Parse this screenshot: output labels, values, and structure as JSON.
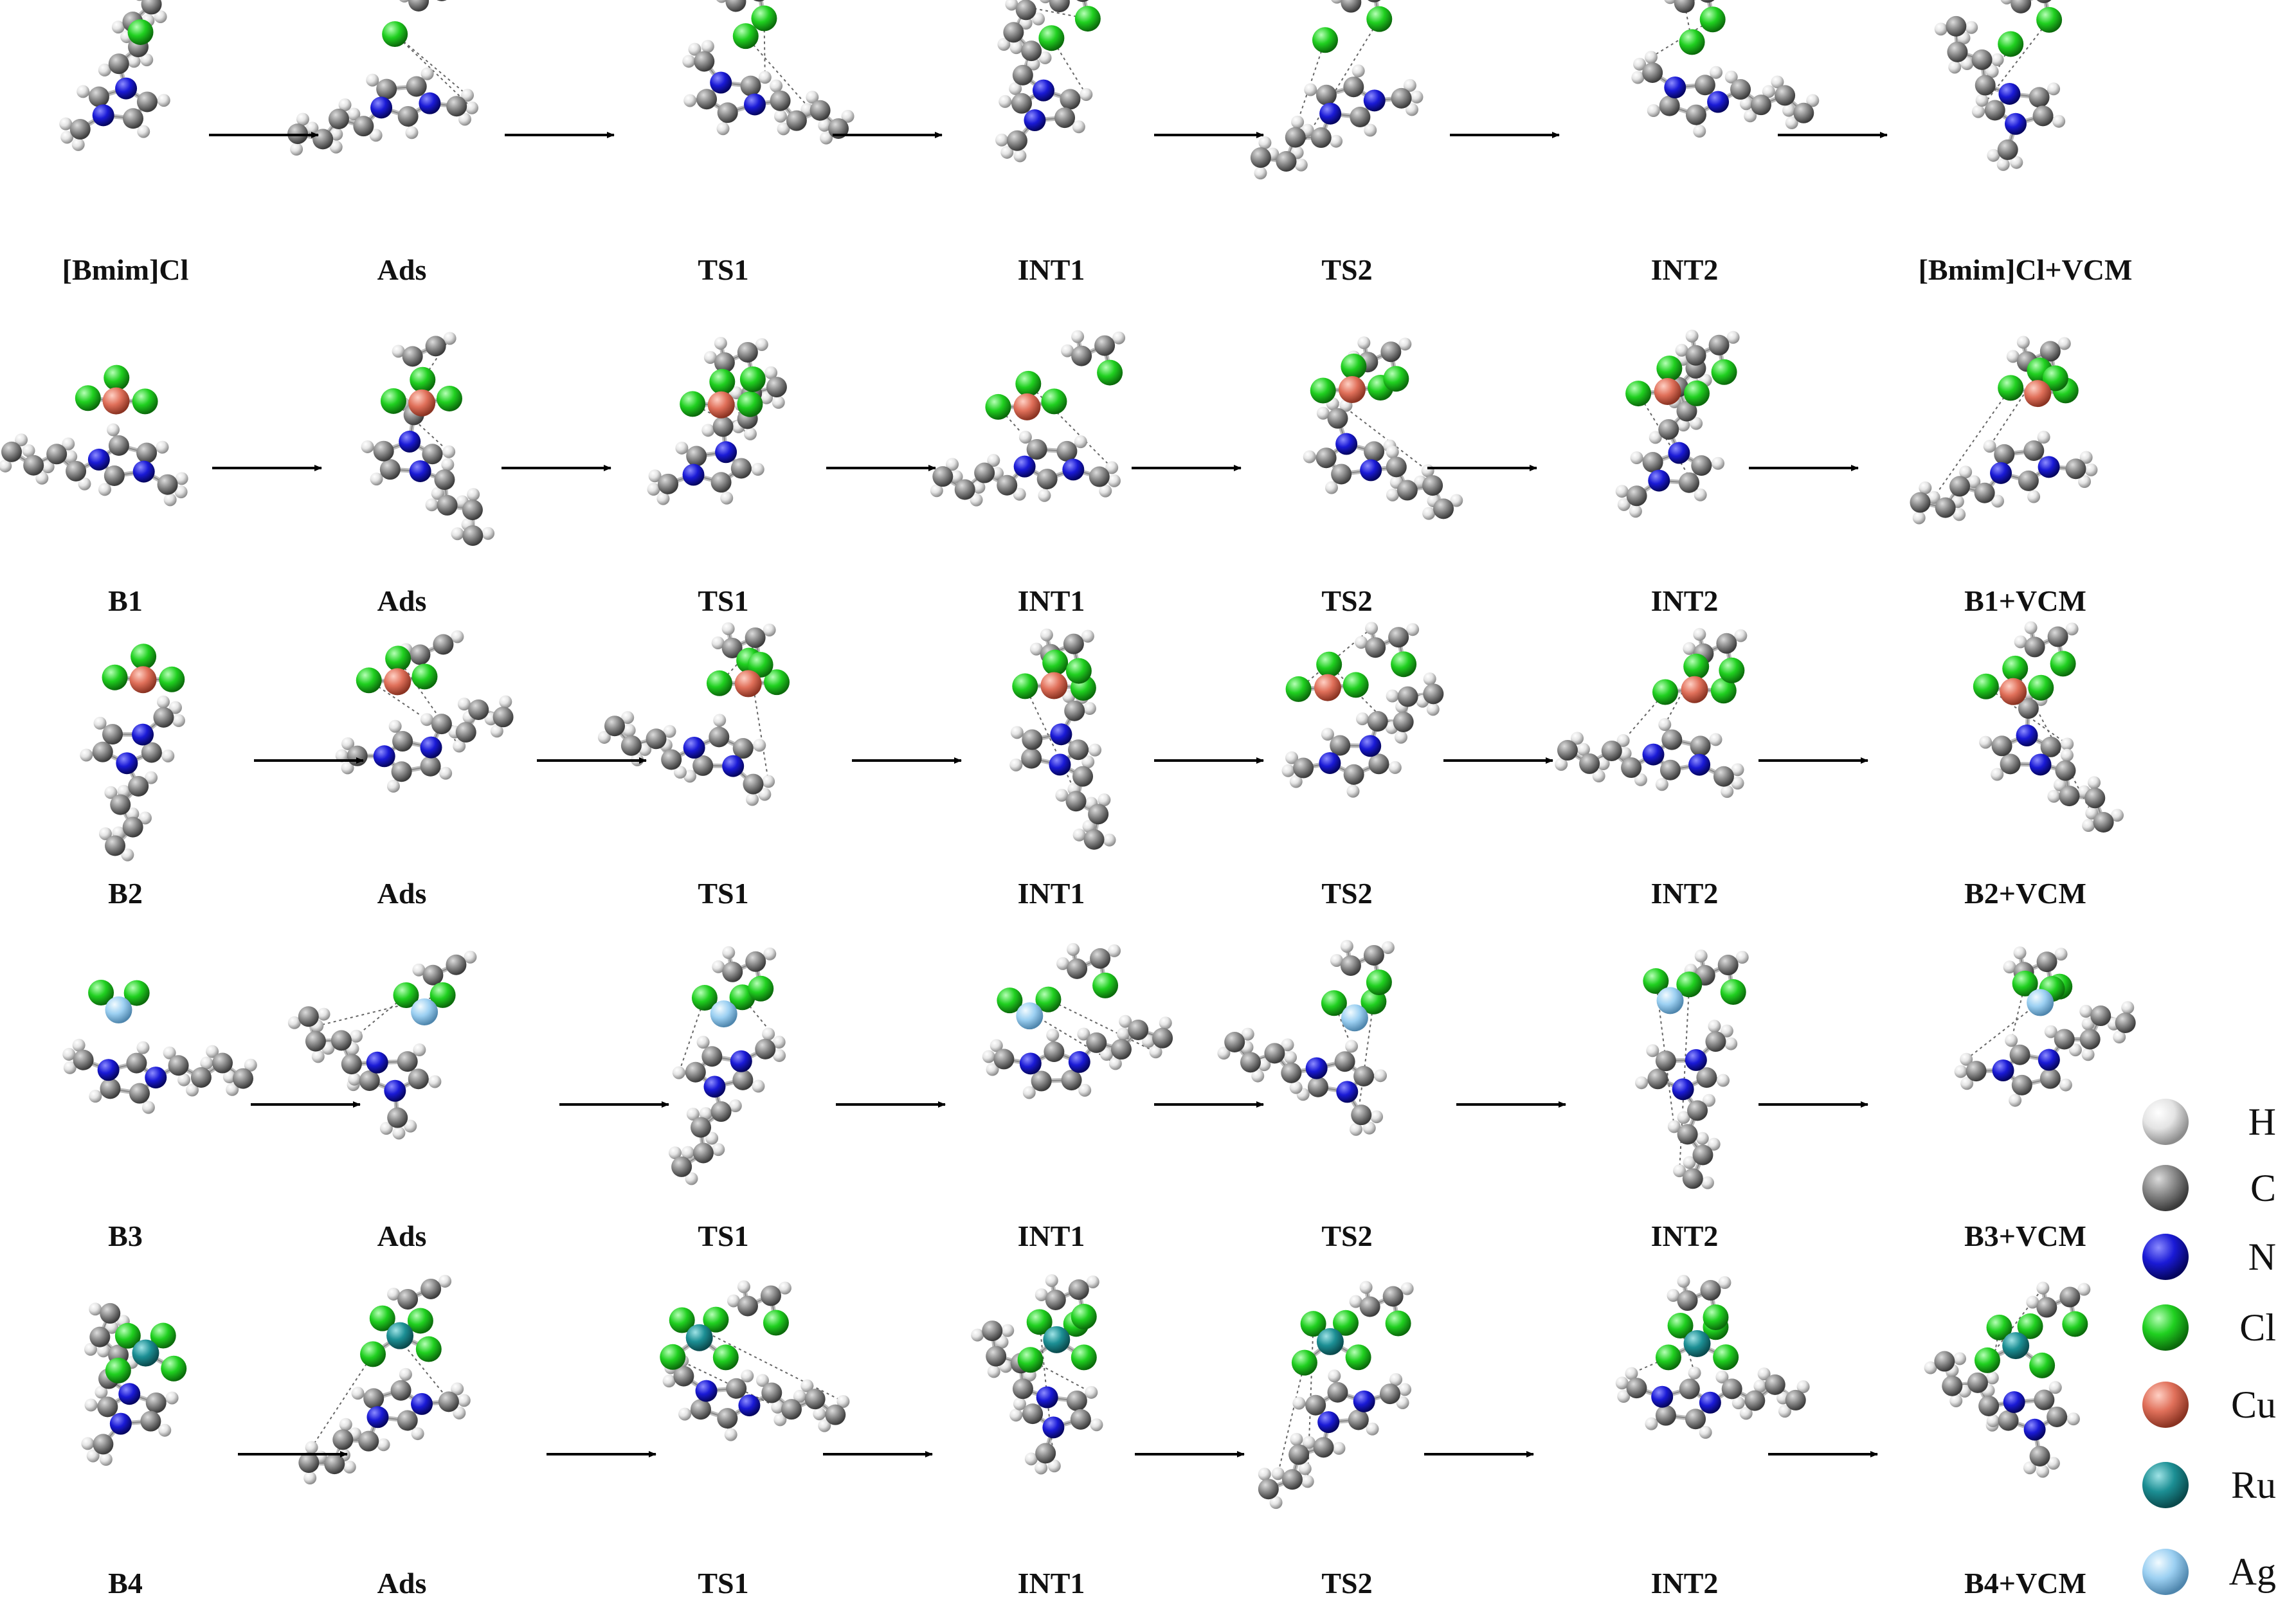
{
  "figure": {
    "rows": [
      {
        "row": "[Bmim]Cl",
        "metal": null,
        "stages": [
          "[Bmim]Cl",
          "Ads",
          "TS1",
          "INT1",
          "TS2",
          "INT2",
          "[Bmim]Cl+VCM"
        ]
      },
      {
        "row": "B1",
        "metal": "Cu",
        "stages": [
          "B1",
          "Ads",
          "TS1",
          "INT1",
          "TS2",
          "INT2",
          "B1+VCM"
        ]
      },
      {
        "row": "B2",
        "metal": "Cu",
        "stages": [
          "B2",
          "Ads",
          "TS1",
          "INT1",
          "TS2",
          "INT2",
          "B2+VCM"
        ]
      },
      {
        "row": "B3",
        "metal": "Ag",
        "stages": [
          "B3",
          "Ads",
          "TS1",
          "INT1",
          "TS2",
          "INT2",
          "B3+VCM"
        ]
      },
      {
        "row": "B4",
        "metal": "Ru",
        "stages": [
          "B4",
          "Ads",
          "TS1",
          "INT1",
          "TS2",
          "INT2",
          "B4+VCM"
        ]
      }
    ]
  },
  "legend": {
    "items": [
      {
        "label": "H",
        "color": "#e4e4e4"
      },
      {
        "label": "C",
        "color": "#8a8a8a"
      },
      {
        "label": "N",
        "color": "#1a1ad6"
      },
      {
        "label": "Cl",
        "color": "#20d020"
      },
      {
        "label": "Cu",
        "color": "#e0705a"
      },
      {
        "label": "Ru",
        "color": "#1c8f94"
      },
      {
        "label": "Ag",
        "color": "#9cd0f2"
      }
    ]
  },
  "colors": {
    "bond": "#bdbdbd",
    "arrow": "#000000",
    "hbond": "#666666"
  }
}
